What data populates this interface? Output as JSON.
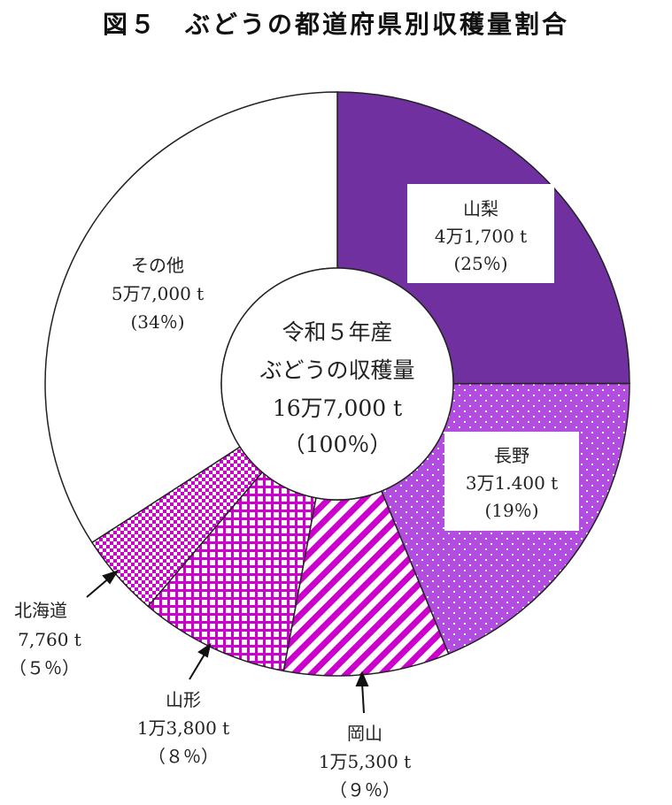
{
  "title": "図５　ぶどうの都道府県別収穫量割合",
  "center": {
    "line1": "令和５年産",
    "line2": "ぶどうの収穫量",
    "line3": "16万7,000 t",
    "line4": "（100％）"
  },
  "chart_data": {
    "type": "pie",
    "title": "図５　ぶどうの都道府県別収穫量割合",
    "total": "16万7,000 t",
    "slices": [
      {
        "name": "山梨",
        "amount": "4万1,700 t",
        "pct_label": "(25％)",
        "value": 41700,
        "percent": 25,
        "color": "#7030a0",
        "pattern": "solid"
      },
      {
        "name": "長野",
        "amount": "3万1.400 t",
        "pct_label": "(19％)",
        "value": 31400,
        "percent": 19,
        "color": "#b24de0",
        "pattern": "dots"
      },
      {
        "name": "岡山",
        "amount": "1万5,300 t",
        "pct_label": "（９％）",
        "value": 15300,
        "percent": 9,
        "color": "#cc00cc",
        "pattern": "diagonal"
      },
      {
        "name": "山形",
        "amount": "1万3,800 t",
        "pct_label": "（８％）",
        "value": 13800,
        "percent": 8,
        "color": "#cc00cc",
        "pattern": "grid"
      },
      {
        "name": "北海道",
        "amount": "7,760 t",
        "pct_label": "（５％）",
        "value": 7760,
        "percent": 5,
        "color": "#cc00cc",
        "pattern": "checker"
      },
      {
        "name": "その他",
        "amount": "5万7,000 t",
        "pct_label": "(34％)",
        "value": 57000,
        "percent": 34,
        "color": "#ffffff",
        "pattern": "none"
      }
    ]
  }
}
